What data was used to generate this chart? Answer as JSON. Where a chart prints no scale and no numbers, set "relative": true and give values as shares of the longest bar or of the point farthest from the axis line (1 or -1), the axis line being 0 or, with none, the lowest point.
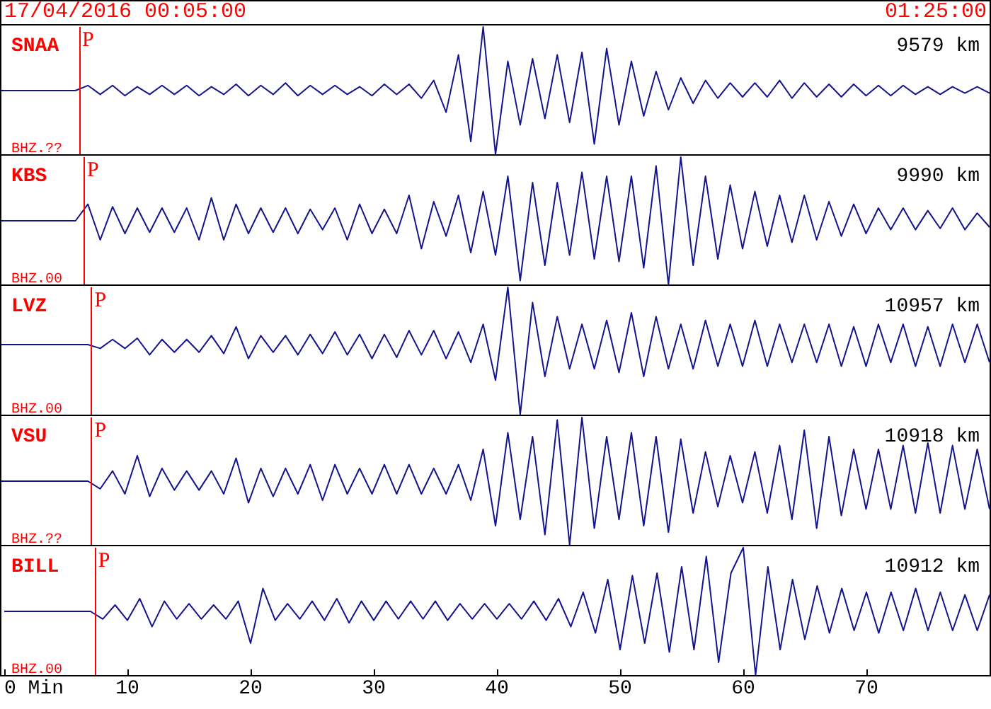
{
  "chart_data": [
    {
      "type": "other",
      "title": "17/04/2016 00:05:00",
      "subtitle": "01:25:00"
    },
    {
      "type": "line",
      "title": "SNAA",
      "subtitle": "9579 km",
      "annotations": [
        "BHZ.??"
      ],
      "relative": true,
      "xlim": [
        0,
        80
      ],
      "tick_labels": false,
      "marker": "none",
      "ref_lines": [
        {
          "axis": "x",
          "value": 6.3,
          "label": "P",
          "color": "#ff0000"
        }
      ],
      "x": [
        0,
        6,
        7,
        8,
        9,
        10,
        11,
        12,
        13,
        14,
        15,
        16,
        17,
        18,
        19,
        20,
        21,
        22,
        23,
        24,
        25,
        26,
        27,
        28,
        29,
        30,
        31,
        32,
        33,
        34,
        35,
        36,
        37,
        38,
        39,
        40,
        41,
        42,
        43,
        44,
        45,
        46,
        47,
        48,
        49,
        50,
        51,
        52,
        53,
        54,
        55,
        56,
        57,
        58,
        59,
        60,
        61,
        62,
        63,
        64,
        65,
        66,
        67,
        68,
        69,
        70,
        71,
        72,
        73,
        74,
        75,
        76,
        77,
        78,
        79,
        80
      ],
      "series": [
        {
          "color": "#14148c",
          "values": [
            0.5,
            0.5,
            0.54,
            0.47,
            0.54,
            0.46,
            0.53,
            0.47,
            0.54,
            0.47,
            0.54,
            0.46,
            0.53,
            0.47,
            0.55,
            0.46,
            0.54,
            0.47,
            0.56,
            0.46,
            0.54,
            0.47,
            0.54,
            0.47,
            0.53,
            0.46,
            0.55,
            0.47,
            0.55,
            0.44,
            0.58,
            0.33,
            0.78,
            0.1,
            1,
            0,
            0.73,
            0.23,
            0.75,
            0.28,
            0.78,
            0.25,
            0.8,
            0.08,
            0.83,
            0.23,
            0.73,
            0.3,
            0.65,
            0.35,
            0.6,
            0.4,
            0.58,
            0.44,
            0.56,
            0.45,
            0.56,
            0.45,
            0.58,
            0.44,
            0.56,
            0.45,
            0.55,
            0.45,
            0.55,
            0.46,
            0.54,
            0.46,
            0.54,
            0.47,
            0.53,
            0.47,
            0.53,
            0.48,
            0.53,
            0.48
          ]
        }
      ]
    },
    {
      "type": "line",
      "title": "KBS",
      "subtitle": "9990 km",
      "annotations": [
        "BHZ.00"
      ],
      "relative": true,
      "xlim": [
        0,
        80
      ],
      "tick_labels": false,
      "marker": "none",
      "ref_lines": [
        {
          "axis": "x",
          "value": 6.7,
          "label": "P",
          "color": "#ff0000"
        }
      ],
      "x": [
        0,
        6,
        7,
        8,
        9,
        10,
        11,
        12,
        13,
        14,
        15,
        16,
        17,
        18,
        19,
        20,
        21,
        22,
        23,
        24,
        25,
        26,
        27,
        28,
        29,
        30,
        31,
        32,
        33,
        34,
        35,
        36,
        37,
        38,
        39,
        40,
        41,
        42,
        43,
        44,
        45,
        46,
        47,
        48,
        49,
        50,
        51,
        52,
        53,
        54,
        55,
        56,
        57,
        58,
        59,
        60,
        61,
        62,
        63,
        64,
        65,
        66,
        67,
        68,
        69,
        70,
        71,
        72,
        73,
        74,
        75,
        76,
        77,
        78,
        79,
        80
      ],
      "series": [
        {
          "color": "#14148c",
          "values": [
            0.5,
            0.5,
            0.63,
            0.35,
            0.61,
            0.4,
            0.6,
            0.41,
            0.6,
            0.41,
            0.6,
            0.35,
            0.68,
            0.35,
            0.63,
            0.4,
            0.6,
            0.41,
            0.6,
            0.4,
            0.59,
            0.43,
            0.6,
            0.35,
            0.63,
            0.4,
            0.59,
            0.4,
            0.7,
            0.28,
            0.65,
            0.38,
            0.7,
            0.25,
            0.73,
            0.23,
            0.85,
            0.03,
            0.8,
            0.15,
            0.8,
            0.23,
            0.88,
            0.2,
            0.85,
            0.18,
            0.85,
            0.13,
            0.93,
            0,
            1,
            0.15,
            0.85,
            0.2,
            0.78,
            0.28,
            0.73,
            0.3,
            0.7,
            0.33,
            0.7,
            0.35,
            0.65,
            0.38,
            0.63,
            0.4,
            0.6,
            0.43,
            0.6,
            0.43,
            0.58,
            0.44,
            0.6,
            0.43,
            0.56,
            0.45
          ]
        }
      ]
    },
    {
      "type": "line",
      "title": "LVZ",
      "subtitle": "10957 km",
      "annotations": [
        "BHZ.00"
      ],
      "relative": true,
      "xlim": [
        0,
        80
      ],
      "tick_labels": false,
      "marker": "none",
      "ref_lines": [
        {
          "axis": "x",
          "value": 7.3,
          "label": "P",
          "color": "#ff0000"
        }
      ],
      "x": [
        0,
        7,
        8,
        9,
        10,
        11,
        12,
        13,
        14,
        15,
        16,
        17,
        18,
        19,
        20,
        21,
        22,
        23,
        24,
        25,
        26,
        27,
        28,
        29,
        30,
        31,
        32,
        33,
        34,
        35,
        36,
        37,
        38,
        39,
        40,
        41,
        42,
        43,
        44,
        45,
        46,
        47,
        48,
        49,
        50,
        51,
        52,
        53,
        54,
        55,
        56,
        57,
        58,
        59,
        60,
        61,
        62,
        63,
        64,
        65,
        66,
        67,
        68,
        69,
        70,
        71,
        72,
        73,
        74,
        75,
        76,
        77,
        78,
        79,
        80
      ],
      "series": [
        {
          "color": "#14148c",
          "values": [
            0.55,
            0.55,
            0.52,
            0.59,
            0.52,
            0.6,
            0.47,
            0.59,
            0.49,
            0.59,
            0.49,
            0.62,
            0.48,
            0.69,
            0.44,
            0.62,
            0.49,
            0.62,
            0.47,
            0.63,
            0.48,
            0.65,
            0.47,
            0.63,
            0.44,
            0.63,
            0.45,
            0.66,
            0.47,
            0.66,
            0.44,
            0.65,
            0.41,
            0.71,
            0.27,
            1,
            0,
            0.88,
            0.3,
            0.77,
            0.36,
            0.71,
            0.36,
            0.74,
            0.33,
            0.8,
            0.3,
            0.77,
            0.36,
            0.71,
            0.36,
            0.74,
            0.38,
            0.71,
            0.38,
            0.74,
            0.38,
            0.71,
            0.41,
            0.71,
            0.41,
            0.71,
            0.38,
            0.69,
            0.38,
            0.71,
            0.41,
            0.71,
            0.38,
            0.69,
            0.38,
            0.71,
            0.41,
            0.71,
            0.41
          ]
        }
      ]
    },
    {
      "type": "line",
      "title": "VSU",
      "subtitle": "10918 km",
      "annotations": [
        "BHZ.??"
      ],
      "relative": true,
      "xlim": [
        0,
        80
      ],
      "tick_labels": false,
      "marker": "none",
      "ref_lines": [
        {
          "axis": "x",
          "value": 7.3,
          "label": "P",
          "color": "#ff0000"
        }
      ],
      "x": [
        0,
        7,
        8,
        9,
        10,
        11,
        12,
        13,
        14,
        15,
        16,
        17,
        18,
        19,
        20,
        21,
        22,
        23,
        24,
        25,
        26,
        27,
        28,
        29,
        30,
        31,
        32,
        33,
        34,
        35,
        36,
        37,
        38,
        39,
        40,
        41,
        42,
        43,
        44,
        45,
        46,
        47,
        48,
        49,
        50,
        51,
        52,
        53,
        54,
        55,
        56,
        57,
        58,
        59,
        60,
        61,
        62,
        63,
        64,
        65,
        66,
        67,
        68,
        69,
        70,
        71,
        72,
        73,
        74,
        75,
        76,
        77,
        78,
        79,
        80
      ],
      "series": [
        {
          "color": "#14148c",
          "values": [
            0.5,
            0.5,
            0.44,
            0.58,
            0.4,
            0.7,
            0.38,
            0.6,
            0.43,
            0.58,
            0.43,
            0.58,
            0.4,
            0.68,
            0.33,
            0.6,
            0.38,
            0.6,
            0.4,
            0.63,
            0.35,
            0.63,
            0.4,
            0.6,
            0.4,
            0.63,
            0.4,
            0.63,
            0.4,
            0.6,
            0.4,
            0.63,
            0.35,
            0.75,
            0.15,
            0.88,
            0.2,
            0.85,
            0.08,
            0.98,
            0,
            1,
            0.13,
            0.85,
            0.2,
            0.88,
            0.15,
            0.85,
            0.1,
            0.83,
            0.25,
            0.73,
            0.3,
            0.7,
            0.33,
            0.73,
            0.25,
            0.78,
            0.2,
            0.9,
            0.13,
            0.85,
            0.23,
            0.75,
            0.28,
            0.75,
            0.28,
            0.78,
            0.25,
            0.8,
            0.25,
            0.78,
            0.28,
            0.75,
            0.28
          ]
        }
      ]
    },
    {
      "type": "line",
      "title": "BILL",
      "subtitle": "10912 km",
      "annotations": [
        "BHZ.00"
      ],
      "relative": true,
      "xlim": [
        0,
        80
      ],
      "xticks": [
        {
          "value": 0,
          "label": "0 Min"
        },
        10,
        20,
        30,
        40,
        50,
        60,
        70
      ],
      "tick_labels": "x",
      "marker": "none",
      "ref_lines": [
        {
          "axis": "x",
          "value": 7.4,
          "label": "P",
          "color": "#ff0000"
        }
      ],
      "x": [
        0,
        7,
        8,
        9,
        10,
        11,
        12,
        13,
        14,
        15,
        16,
        17,
        18,
        19,
        20,
        21,
        22,
        23,
        24,
        25,
        26,
        27,
        28,
        29,
        30,
        31,
        32,
        33,
        34,
        35,
        36,
        37,
        38,
        39,
        40,
        41,
        42,
        43,
        44,
        45,
        46,
        47,
        48,
        49,
        50,
        51,
        52,
        53,
        54,
        55,
        56,
        57,
        58,
        59,
        60,
        61,
        62,
        63,
        64,
        65,
        66,
        67,
        68,
        69,
        70,
        71,
        72,
        73,
        74,
        75,
        76,
        77,
        78,
        79,
        80
      ],
      "series": [
        {
          "color": "#14148c",
          "values": [
            0.5,
            0.5,
            0.44,
            0.55,
            0.43,
            0.6,
            0.38,
            0.58,
            0.44,
            0.56,
            0.44,
            0.55,
            0.44,
            0.58,
            0.25,
            0.68,
            0.43,
            0.56,
            0.44,
            0.58,
            0.43,
            0.6,
            0.41,
            0.58,
            0.43,
            0.58,
            0.44,
            0.58,
            0.44,
            0.58,
            0.43,
            0.56,
            0.44,
            0.56,
            0.44,
            0.56,
            0.44,
            0.58,
            0.43,
            0.6,
            0.38,
            0.65,
            0.33,
            0.75,
            0.2,
            0.78,
            0.25,
            0.8,
            0.18,
            0.85,
            0.2,
            0.93,
            0.1,
            0.8,
            1,
            0,
            0.85,
            0.2,
            0.75,
            0.28,
            0.7,
            0.33,
            0.68,
            0.35,
            0.65,
            0.33,
            0.65,
            0.35,
            0.68,
            0.35,
            0.65,
            0.35,
            0.63,
            0.35,
            0.63
          ]
        }
      ]
    }
  ]
}
